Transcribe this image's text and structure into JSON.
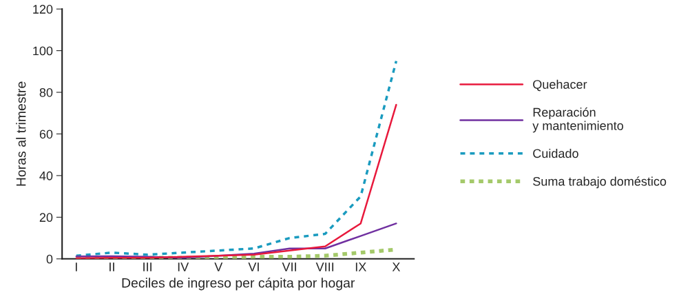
{
  "chart_data": {
    "type": "line",
    "xlabel": "Deciles de ingreso per cápita por hogar",
    "ylabel": "Horas al trimestre",
    "categories": [
      "I",
      "II",
      "III",
      "IV",
      "V",
      "VI",
      "VII",
      "VIII",
      "IX",
      "X"
    ],
    "series": [
      {
        "name": "Quehacer",
        "color": "#e8193c",
        "line_style": "solid",
        "values": [
          0.3,
          0.5,
          0.5,
          1,
          1.5,
          2,
          4,
          6,
          17,
          74
        ]
      },
      {
        "name": "Reparación\ny mantenimiento",
        "color": "#7030a0",
        "line_style": "solid",
        "values": [
          1.2,
          1.3,
          1,
          0.5,
          1.5,
          2.5,
          5,
          5,
          11,
          17
        ]
      },
      {
        "name": "Cuidado",
        "color": "#1a9bbf",
        "line_style": "dashed",
        "values": [
          1.5,
          3,
          2,
          3,
          4,
          5,
          10,
          12,
          30,
          95
        ]
      },
      {
        "name": "Suma trabajo doméstico",
        "color": "#a4c96a",
        "line_style": "dotted",
        "values": [
          0,
          0,
          0.5,
          0.5,
          0.5,
          1,
          1,
          1.5,
          3,
          4.5
        ]
      }
    ],
    "ylim": [
      0,
      120
    ],
    "yticks": [
      0,
      20,
      40,
      60,
      80,
      100,
      120
    ],
    "grid": false,
    "legend": "right",
    "marker": "none"
  }
}
